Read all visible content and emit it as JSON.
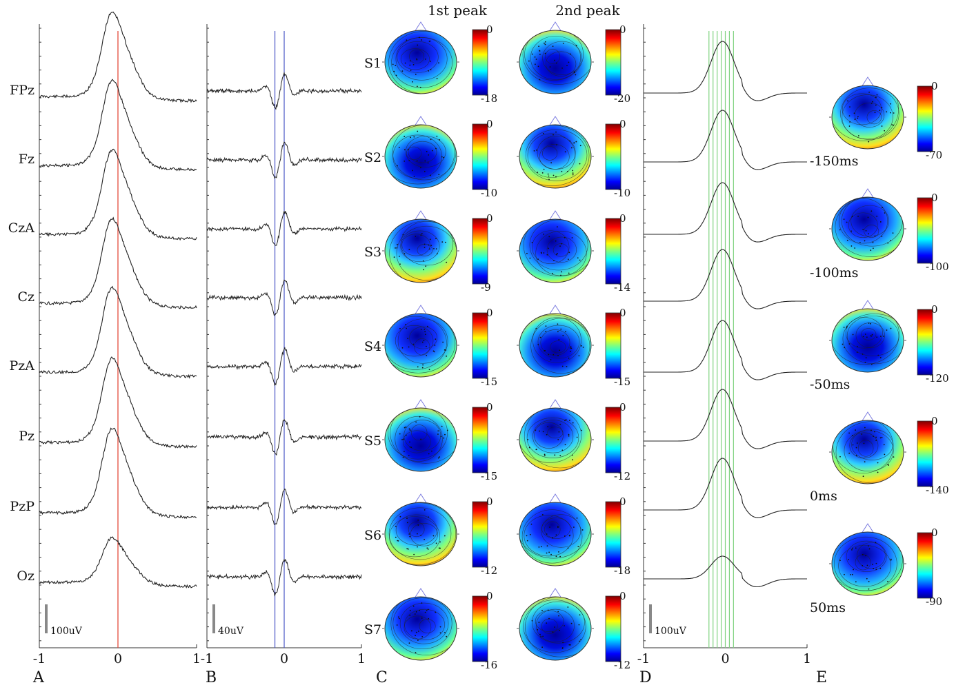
{
  "panel_letters": [
    "A",
    "B",
    "C",
    "D",
    "E"
  ],
  "panelA": {
    "channels": [
      "FPz",
      "Fz",
      "CzA",
      "Cz",
      "PzA",
      "Pz",
      "PzP",
      "Oz"
    ],
    "scale_label": "100uV",
    "ticks": [
      "-1",
      "0",
      "1"
    ],
    "marker_x": 0,
    "marker_color": "#e34a3a"
  },
  "panelB": {
    "scale_label": "40uV",
    "ticks": [
      "-1",
      "0",
      "1"
    ],
    "marker_x": [
      -0.12,
      0.0
    ],
    "marker_color": "#4a56c6"
  },
  "panelC": {
    "col_titles": [
      "1st peak",
      "2nd peak"
    ],
    "rows": [
      {
        "subject": "S1",
        "peak1_min": "-18",
        "peak2_min": "-20"
      },
      {
        "subject": "S2",
        "peak1_min": "-10",
        "peak2_min": "-10"
      },
      {
        "subject": "S3",
        "peak1_min": "-9",
        "peak2_min": "-14"
      },
      {
        "subject": "S4",
        "peak1_min": "-15",
        "peak2_min": "-15"
      },
      {
        "subject": "S5",
        "peak1_min": "-15",
        "peak2_min": "-12"
      },
      {
        "subject": "S6",
        "peak1_min": "-12",
        "peak2_min": "-18"
      },
      {
        "subject": "S7",
        "peak1_min": "-16",
        "peak2_min": "-12"
      }
    ],
    "colorbar_max": "0"
  },
  "panelD": {
    "scale_label": "100uV",
    "ticks": [
      "-1",
      "0",
      "1"
    ],
    "marker_x": [
      -0.2,
      -0.15,
      -0.1,
      -0.05,
      0.0,
      0.05,
      0.1
    ],
    "marker_color": "#7fd27f"
  },
  "panelE": {
    "maps": [
      {
        "time": "-150ms",
        "min": "-70"
      },
      {
        "time": "-100ms",
        "min": "-100"
      },
      {
        "time": "-50ms",
        "min": "-120"
      },
      {
        "time": "0ms",
        "min": "-140"
      },
      {
        "time": "50ms",
        "min": "-90"
      }
    ],
    "colorbar_max": "0"
  }
}
